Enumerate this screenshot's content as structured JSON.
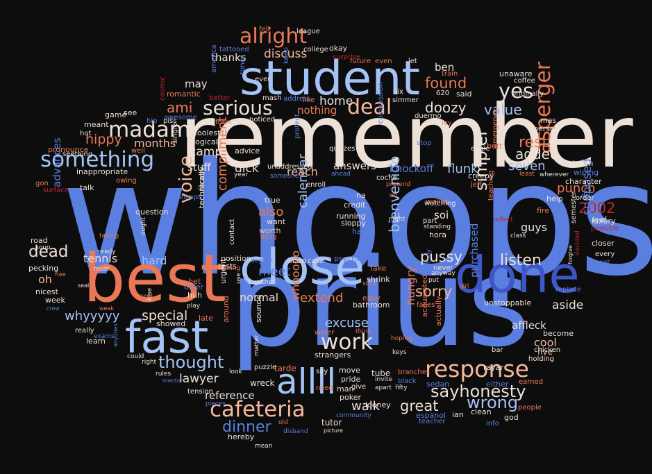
{
  "palette": {
    "background": "#0d0d0d",
    "blue": "#5b7fe0",
    "lightblue": "#a4c2f4",
    "cream": "#ede0d6",
    "salmon": "#ea7856",
    "peach": "#f4b99d",
    "red": "#c0262c",
    "darkblue": "#3f57c6"
  },
  "words": [
    {
      "text": "whoops",
      "color": "blue"
    },
    {
      "text": "prius",
      "color": "blue"
    },
    {
      "text": "remember",
      "color": "cream"
    },
    {
      "text": "best",
      "color": "salmon"
    },
    {
      "text": "student",
      "color": "lightblue"
    },
    {
      "text": "close",
      "color": "lightblue"
    },
    {
      "text": "done",
      "color": "darkblue"
    },
    {
      "text": "fast",
      "color": "lightblue"
    },
    {
      "text": "allll",
      "color": "lightblue"
    },
    {
      "text": "response",
      "color": "peach"
    },
    {
      "text": "cafeteria",
      "color": "peach"
    },
    {
      "text": "work",
      "color": "cream"
    },
    {
      "text": "deal",
      "color": "peach"
    },
    {
      "text": "yes",
      "color": "cream"
    },
    {
      "text": "serious",
      "color": "cream"
    },
    {
      "text": "alright",
      "color": "salmon"
    },
    {
      "text": "madam",
      "color": "cream"
    },
    {
      "text": "something",
      "color": "lightblue"
    },
    {
      "text": "asperger",
      "color": "salmon"
    },
    {
      "text": "voice",
      "color": "peach"
    },
    {
      "text": "thought",
      "color": "lightblue"
    },
    {
      "text": "sayhonesty",
      "color": "cream"
    },
    {
      "text": "wrong",
      "color": "lightblue"
    },
    {
      "text": "simpler",
      "color": "cream"
    },
    {
      "text": "bienvenido",
      "color": "lightblue"
    },
    {
      "text": "dinner",
      "color": "blue"
    },
    {
      "text": "listen",
      "color": "cream"
    },
    {
      "text": "rest",
      "color": "salmon"
    },
    {
      "text": "added",
      "color": "cream"
    },
    {
      "text": "value",
      "color": "lightblue"
    },
    {
      "text": "found",
      "color": "salmon"
    },
    {
      "text": "doozy",
      "color": "cream"
    },
    {
      "text": "ami",
      "color": "salmon"
    },
    {
      "text": "hippy",
      "color": "salmon"
    },
    {
      "text": "dead",
      "color": "cream"
    },
    {
      "text": "sorry",
      "color": "peach"
    },
    {
      "text": "pussy",
      "color": "cream"
    },
    {
      "text": "2002",
      "color": "red"
    },
    {
      "text": "great",
      "color": "cream"
    },
    {
      "text": "walk",
      "color": "cream"
    },
    {
      "text": "lawyer",
      "color": "cream"
    },
    {
      "text": "special",
      "color": "cream"
    },
    {
      "text": "whyyyyy",
      "color": "lightblue"
    },
    {
      "text": "excuse",
      "color": "lightblue"
    },
    {
      "text": "extend",
      "color": "salmon"
    },
    {
      "text": "normal",
      "color": "cream"
    },
    {
      "text": "hungry",
      "color": "salmon"
    },
    {
      "text": "calendar",
      "color": "lightblue"
    },
    {
      "text": "compliment",
      "color": "salmon"
    },
    {
      "text": "also",
      "color": "salmon"
    },
    {
      "text": "seven",
      "color": "lightblue"
    },
    {
      "text": "flunk",
      "color": "lightblue"
    },
    {
      "text": "knockoff",
      "color": "blue"
    },
    {
      "text": "answers",
      "color": "cream"
    },
    {
      "text": "reach",
      "color": "peach"
    },
    {
      "text": "camp",
      "color": "cream"
    },
    {
      "text": "dick",
      "color": "cream"
    },
    {
      "text": "stuff",
      "color": "cream"
    },
    {
      "text": "months",
      "color": "peach"
    },
    {
      "text": "home",
      "color": "cream"
    },
    {
      "text": "discuss",
      "color": "peach"
    },
    {
      "text": "thanks",
      "color": "cream"
    },
    {
      "text": "may",
      "color": "cream"
    },
    {
      "text": "ben",
      "color": "cream"
    },
    {
      "text": "punch",
      "color": "salmon"
    },
    {
      "text": "supposed",
      "color": "blue"
    },
    {
      "text": "aside",
      "color": "cream"
    },
    {
      "text": "affleck",
      "color": "cream"
    },
    {
      "text": "cool",
      "color": "peach"
    },
    {
      "text": "purchased",
      "color": "blue"
    },
    {
      "text": "guys",
      "color": "cream"
    },
    {
      "text": "soi",
      "color": "cream"
    },
    {
      "text": "tennis",
      "color": "cream"
    },
    {
      "text": "hard",
      "color": "lightblue"
    },
    {
      "text": "oh",
      "color": "peach"
    },
    {
      "text": "advances",
      "color": "blue"
    },
    {
      "text": "reference",
      "color": "cream"
    },
    {
      "text": "whooooo",
      "color": "salmon"
    },
    {
      "text": "nothing",
      "color": "salmon"
    },
    {
      "text": "okay",
      "color": "cream"
    },
    {
      "text": "meet",
      "color": "blue"
    },
    {
      "text": "wreck",
      "color": "cream"
    },
    {
      "text": "tutor",
      "color": "cream"
    },
    {
      "text": "clean",
      "color": "cream"
    },
    {
      "text": "god",
      "color": "cream"
    },
    {
      "text": "five",
      "color": "peach"
    },
    {
      "text": "tube",
      "color": "cream"
    },
    {
      "text": "strangers",
      "color": "cream"
    },
    {
      "text": "sounds",
      "color": "cream"
    },
    {
      "text": "hereby",
      "color": "cream"
    },
    {
      "text": "psychology",
      "color": "blue"
    },
    {
      "text": "running",
      "color": "cream"
    },
    {
      "text": "credit",
      "color": "cream"
    },
    {
      "text": "worth",
      "color": "peach"
    },
    {
      "text": "want",
      "color": "cream"
    },
    {
      "text": "true",
      "color": "cream"
    },
    {
      "text": "na",
      "color": "cream"
    },
    {
      "text": "hair",
      "color": "blue"
    },
    {
      "text": "sloppy",
      "color": "cream"
    },
    {
      "text": "luxury",
      "color": "cream"
    },
    {
      "text": "help",
      "color": "cream"
    },
    {
      "text": "creepy",
      "color": "cream"
    },
    {
      "text": "wallet",
      "color": "salmon"
    },
    {
      "text": "hora",
      "color": "cream"
    },
    {
      "text": "said",
      "color": "cream"
    },
    {
      "text": "unaware",
      "color": "cream"
    },
    {
      "text": "mas",
      "color": "cream"
    },
    {
      "text": "person",
      "color": "cream"
    },
    {
      "text": "question",
      "color": "cream"
    },
    {
      "text": "technically",
      "color": "cream"
    },
    {
      "text": "position",
      "color": "cream"
    },
    {
      "text": "tests",
      "color": "cream"
    },
    {
      "text": "urgent",
      "color": "cream"
    },
    {
      "text": "around",
      "color": "salmon"
    },
    {
      "text": "late",
      "color": "salmon"
    },
    {
      "text": "showed",
      "color": "cream"
    },
    {
      "text": "learn",
      "color": "cream"
    },
    {
      "text": "week",
      "color": "cream"
    },
    {
      "text": "nicest",
      "color": "cream"
    },
    {
      "text": "pecking",
      "color": "cream"
    },
    {
      "text": "road",
      "color": "cream"
    },
    {
      "text": "pronounce",
      "color": "salmon"
    },
    {
      "text": "inappropriate",
      "color": "cream"
    },
    {
      "text": "talk",
      "color": "cream"
    },
    {
      "text": "coolest",
      "color": "cream"
    },
    {
      "text": "logical",
      "color": "cream"
    },
    {
      "text": "romantic",
      "color": "salmon"
    },
    {
      "text": "see",
      "color": "cream"
    },
    {
      "text": "meant",
      "color": "cream"
    },
    {
      "text": "game",
      "color": "cream"
    },
    {
      "text": "bet",
      "color": "salmon"
    },
    {
      "text": "huh",
      "color": "cream"
    },
    {
      "text": "older",
      "color": "blue"
    },
    {
      "text": "bathroom",
      "color": "cream"
    },
    {
      "text": "easy",
      "color": "salmon"
    },
    {
      "text": "shrink",
      "color": "cream"
    },
    {
      "text": "fake",
      "color": "salmon"
    },
    {
      "text": "move",
      "color": "cream"
    },
    {
      "text": "pride",
      "color": "cream"
    },
    {
      "text": "poker",
      "color": "cream"
    },
    {
      "text": "man",
      "color": "cream"
    },
    {
      "text": "tarde",
      "color": "salmon"
    },
    {
      "text": "sedan",
      "color": "blue"
    },
    {
      "text": "either",
      "color": "blue"
    },
    {
      "text": "become",
      "color": "cream"
    },
    {
      "text": "rayar",
      "color": "cream"
    },
    {
      "text": "espanol",
      "color": "blue"
    },
    {
      "text": "ian",
      "color": "cream"
    },
    {
      "text": "looney",
      "color": "cream"
    },
    {
      "text": "actually",
      "color": "salmon"
    },
    {
      "text": "acquainted",
      "color": "salmon"
    },
    {
      "text": "unstoppable",
      "color": "cream"
    },
    {
      "text": "closer",
      "color": "cream"
    },
    {
      "text": "leaf",
      "color": "cream"
    },
    {
      "text": "character",
      "color": "cream"
    },
    {
      "text": "wiping",
      "color": "blue"
    },
    {
      "text": "driven",
      "color": "blue"
    },
    {
      "text": "shown",
      "color": "cream"
    },
    {
      "text": "semester",
      "color": "cream"
    },
    {
      "text": "replace",
      "color": "blue"
    },
    {
      "text": "every",
      "color": "cream"
    },
    {
      "text": "seat",
      "color": "blue"
    },
    {
      "text": "possible",
      "color": "red"
    },
    {
      "text": "order",
      "color": "cream"
    },
    {
      "text": "earned",
      "color": "salmon"
    },
    {
      "text": "holding",
      "color": "cream"
    },
    {
      "text": "chicken",
      "color": "cream"
    },
    {
      "text": "teacher",
      "color": "blue"
    },
    {
      "text": "people",
      "color": "salmon"
    },
    {
      "text": "info",
      "color": "blue"
    },
    {
      "text": "fire",
      "color": "salmon"
    },
    {
      "text": "least",
      "color": "salmon"
    },
    {
      "text": "wherever",
      "color": "cream"
    },
    {
      "text": "jeff",
      "color": "salmon"
    },
    {
      "text": "teaching",
      "color": "salmon"
    },
    {
      "text": "emergency",
      "color": "salmon"
    },
    {
      "text": "butt",
      "color": "salmon"
    },
    {
      "text": "eagle",
      "color": "cream"
    },
    {
      "text": "originally",
      "color": "cream"
    },
    {
      "text": "coffee",
      "color": "cream"
    },
    {
      "text": "train",
      "color": "salmon"
    },
    {
      "text": "620",
      "color": "cream"
    },
    {
      "text": "duermo",
      "color": "cream"
    },
    {
      "text": "ivy",
      "color": "salmon"
    },
    {
      "text": "stop",
      "color": "blue"
    },
    {
      "text": "nice",
      "color": "cream"
    },
    {
      "text": "simmer",
      "color": "cream"
    },
    {
      "text": "six",
      "color": "cream"
    },
    {
      "text": "compassion",
      "color": "blue"
    },
    {
      "text": "let",
      "color": "cream"
    },
    {
      "text": "even",
      "color": "salmon"
    },
    {
      "text": "future",
      "color": "salmon"
    },
    {
      "text": "surprise",
      "color": "red"
    },
    {
      "text": "college",
      "color": "cream"
    },
    {
      "text": "league",
      "color": "cream"
    },
    {
      "text": "fell",
      "color": "salmon"
    },
    {
      "text": "tattooed",
      "color": "blue"
    },
    {
      "text": "ever",
      "color": "cream"
    },
    {
      "text": "keep",
      "color": "blue"
    },
    {
      "text": "america",
      "color": "blue"
    },
    {
      "text": "tunes",
      "color": "blue"
    },
    {
      "text": "mash",
      "color": "cream"
    },
    {
      "text": "address",
      "color": "blue"
    },
    {
      "text": "like",
      "color": "salmon"
    },
    {
      "text": "noticed",
      "color": "cream"
    },
    {
      "text": "better",
      "color": "red"
    },
    {
      "text": "form",
      "color": "salmon"
    },
    {
      "text": "piss",
      "color": "cream"
    },
    {
      "text": "hip",
      "color": "blue"
    },
    {
      "text": "awesome",
      "color": "blue"
    },
    {
      "text": "cosmic",
      "color": "red"
    },
    {
      "text": "hot",
      "color": "cream"
    },
    {
      "text": "seething",
      "color": "cream"
    },
    {
      "text": "surface",
      "color": "red"
    },
    {
      "text": "gon",
      "color": "salmon"
    },
    {
      "text": "owing",
      "color": "salmon"
    },
    {
      "text": "well",
      "color": "salmon"
    },
    {
      "text": "advice",
      "color": "cream"
    },
    {
      "text": "protect",
      "color": "blue"
    },
    {
      "text": "quizzes",
      "color": "cream"
    },
    {
      "text": "single",
      "color": "cream"
    },
    {
      "text": "incapable",
      "color": "blue"
    },
    {
      "text": "library",
      "color": "cream"
    },
    {
      "text": "unaddressed",
      "color": "cream"
    },
    {
      "text": "year",
      "color": "cream"
    },
    {
      "text": "someone",
      "color": "blue"
    },
    {
      "text": "ahead",
      "color": "blue"
    },
    {
      "text": "enroll",
      "color": "cream"
    },
    {
      "text": "coche",
      "color": "cream"
    },
    {
      "text": "pretend",
      "color": "salmon"
    },
    {
      "text": "eh",
      "color": "salmon"
    },
    {
      "text": "night",
      "color": "cream"
    },
    {
      "text": "part",
      "color": "cream"
    },
    {
      "text": "watching",
      "color": "cream"
    },
    {
      "text": "standing",
      "color": "cream"
    },
    {
      "text": "reflect",
      "color": "red"
    },
    {
      "text": "class",
      "color": "cream"
    },
    {
      "text": "anyway",
      "color": "cream"
    },
    {
      "text": "put",
      "color": "cream"
    },
    {
      "text": "never",
      "color": "cream"
    },
    {
      "text": "study",
      "color": "blue"
    },
    {
      "text": "faces",
      "color": "salmon"
    },
    {
      "text": "girl",
      "color": "salmon"
    },
    {
      "text": "bar",
      "color": "cream"
    },
    {
      "text": "hoping",
      "color": "salmon"
    },
    {
      "text": "keys",
      "color": "cream"
    },
    {
      "text": "branches",
      "color": "salmon"
    },
    {
      "text": "black",
      "color": "blue"
    },
    {
      "text": "fifty",
      "color": "cream"
    },
    {
      "text": "apart",
      "color": "cream"
    },
    {
      "text": "invite",
      "color": "cream"
    },
    {
      "text": "give",
      "color": "cream"
    },
    {
      "text": "need",
      "color": "salmon"
    },
    {
      "text": "say",
      "color": "cream"
    },
    {
      "text": "water",
      "color": "salmon"
    },
    {
      "text": "think",
      "color": "salmon"
    },
    {
      "text": "matter",
      "color": "cream"
    },
    {
      "text": "puzzle",
      "color": "cream"
    },
    {
      "text": "look",
      "color": "cream"
    },
    {
      "text": "thing",
      "color": "salmon"
    },
    {
      "text": "contact",
      "color": "cream"
    },
    {
      "text": "use",
      "color": "cream"
    },
    {
      "text": "together",
      "color": "cream"
    },
    {
      "text": "degree",
      "color": "blue"
    },
    {
      "text": "soon",
      "color": "cream"
    },
    {
      "text": "case",
      "color": "cream"
    },
    {
      "text": "suck",
      "color": "salmon"
    },
    {
      "text": "bring",
      "color": "salmon"
    },
    {
      "text": "tension",
      "color": "cream"
    },
    {
      "text": "pieces",
      "color": "blue"
    },
    {
      "text": "old",
      "color": "salmon"
    },
    {
      "text": "disband",
      "color": "blue"
    },
    {
      "text": "picture",
      "color": "cream"
    },
    {
      "text": "community",
      "color": "blue"
    },
    {
      "text": "mean",
      "color": "cream"
    },
    {
      "text": "mentor",
      "color": "blue"
    },
    {
      "text": "rules",
      "color": "cream"
    },
    {
      "text": "right",
      "color": "cream"
    },
    {
      "text": "could",
      "color": "cream"
    },
    {
      "text": "lose",
      "color": "cream"
    },
    {
      "text": "play",
      "color": "cream"
    },
    {
      "text": "accept",
      "color": "salmon"
    },
    {
      "text": "weak",
      "color": "salmon"
    },
    {
      "text": "really",
      "color": "cream"
    },
    {
      "text": "exams",
      "color": "blue"
    },
    {
      "text": "anyones",
      "color": "blue"
    },
    {
      "text": "seal",
      "color": "cream"
    },
    {
      "text": "free",
      "color": "salmon"
    },
    {
      "text": "crew",
      "color": "blue"
    },
    {
      "text": "must",
      "color": "cream"
    },
    {
      "text": "ready",
      "color": "cream"
    },
    {
      "text": "taking",
      "color": "salmon"
    },
    {
      "text": "ought",
      "color": "cream"
    },
    {
      "text": "soup",
      "color": "cream"
    },
    {
      "text": "forgive",
      "color": "cream"
    },
    {
      "text": "decided",
      "color": "red"
    },
    {
      "text": "offeither",
      "color": "cream"
    },
    {
      "text": "raised",
      "color": "blue"
    }
  ]
}
